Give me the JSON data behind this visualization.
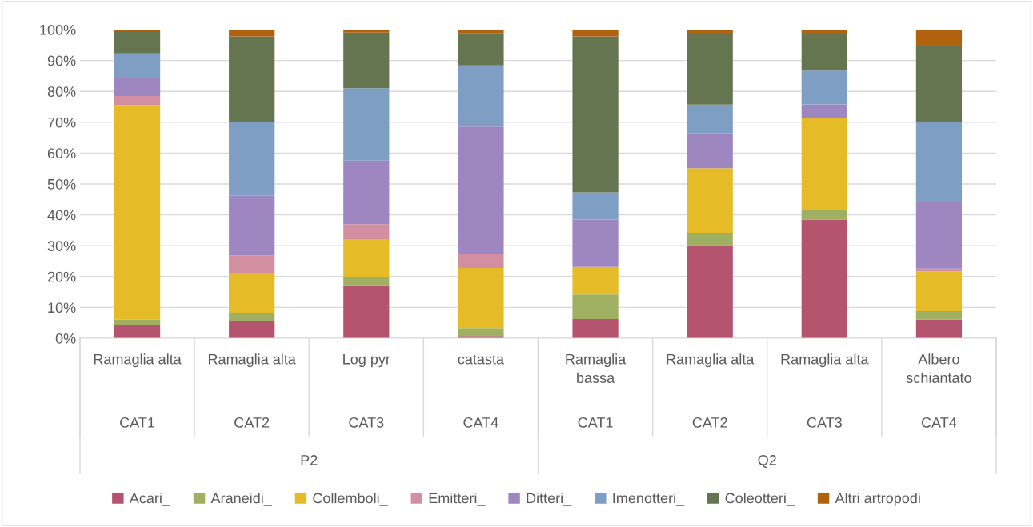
{
  "chart_data": {
    "type": "bar",
    "stacked": true,
    "categories": [
      [
        "Ramaglia alta",
        "CAT1",
        "P2"
      ],
      [
        "Ramaglia alta",
        "CAT2",
        null
      ],
      [
        "Log pyr",
        "CAT3",
        null
      ],
      [
        "catasta",
        "CAT4",
        null
      ],
      [
        "Ramaglia bassa",
        "CAT1",
        "Q2"
      ],
      [
        "Ramaglia alta",
        "CAT2",
        null
      ],
      [
        "Ramaglia alta",
        "CAT3",
        null
      ],
      [
        "Albero schiantato",
        "CAT4",
        null
      ]
    ],
    "series": [
      {
        "name": "Acari_",
        "color": "#b5546f",
        "values": [
          4.2,
          5.6,
          17.0,
          0.7,
          6.2,
          30.2,
          38.5,
          6.0
        ]
      },
      {
        "name": "Araneidi_",
        "color": "#9fb062",
        "values": [
          1.8,
          2.5,
          2.8,
          2.6,
          8.0,
          4.0,
          3.1,
          2.8
        ]
      },
      {
        "name": "Collemboli_",
        "color": "#e5bb27",
        "values": [
          69.6,
          13.0,
          12.1,
          19.5,
          8.9,
          20.9,
          29.7,
          12.9
        ]
      },
      {
        "name": "Emitteri_",
        "color": "#d28fa2",
        "values": [
          2.9,
          5.8,
          5.1,
          4.6,
          0,
          0,
          0,
          0.9
        ]
      },
      {
        "name": "Ditteri_",
        "color": "#9e86c1",
        "values": [
          5.7,
          19.3,
          20.6,
          41.2,
          15.4,
          11.3,
          4.5,
          21.7
        ]
      },
      {
        "name": "Imenotteri_",
        "color": "#7f9ec4",
        "values": [
          8.1,
          24.0,
          23.4,
          19.8,
          8.8,
          9.3,
          10.9,
          25.9
        ]
      },
      {
        "name": "Coleotteri_",
        "color": "#64754f",
        "values": [
          7.2,
          27.6,
          18.0,
          10.4,
          50.5,
          22.9,
          11.9,
          24.4
        ]
      },
      {
        "name": "Altri artropodi",
        "color": "#b0620f",
        "values": [
          0.5,
          2.2,
          1.0,
          1.2,
          2.2,
          1.4,
          1.4,
          5.4
        ]
      }
    ],
    "ylim": [
      0,
      100
    ],
    "yticks": [
      {
        "value": 0,
        "label": "0%"
      },
      {
        "value": 10,
        "label": "10%"
      },
      {
        "value": 20,
        "label": "20%"
      },
      {
        "value": 30,
        "label": "30%"
      },
      {
        "value": 40,
        "label": "40%"
      },
      {
        "value": 50,
        "label": "50%"
      },
      {
        "value": 60,
        "label": "60%"
      },
      {
        "value": 70,
        "label": "70%"
      },
      {
        "value": 80,
        "label": "80%"
      },
      {
        "value": 90,
        "label": "90%"
      },
      {
        "value": 100,
        "label": "100%"
      }
    ],
    "grid": "y",
    "legend": "bottom"
  }
}
